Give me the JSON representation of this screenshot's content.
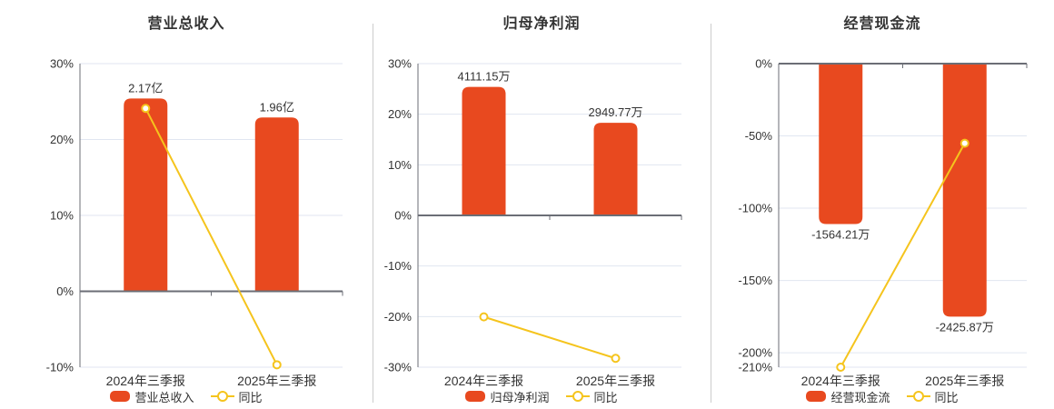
{
  "colors": {
    "bar": "#e8491f",
    "line": "#f5c41d",
    "axis": "#6b6e76",
    "grid": "#e0e6f1",
    "text": "#333333",
    "divider": "#cccccc",
    "background": "#ffffff"
  },
  "chart_data": [
    {
      "type": "bar",
      "title": "营业总收入",
      "categories": [
        "2024年三季报",
        "2025年三季报"
      ],
      "ylim": [
        -10,
        30
      ],
      "grid": true,
      "legend_position": "bottom",
      "y_ticks": [
        {
          "value": 30,
          "label": "30%"
        },
        {
          "value": 20,
          "label": "20%"
        },
        {
          "value": 10,
          "label": "10%"
        },
        {
          "value": 0,
          "label": "0%"
        },
        {
          "value": -10,
          "label": "-10%"
        }
      ],
      "series": [
        {
          "type": "bar",
          "name": "营业总收入",
          "data_labels": [
            "2.17亿",
            "1.96亿"
          ],
          "values_pct": [
            25.4,
            22.9
          ],
          "label_placement": "above"
        },
        {
          "type": "line",
          "name": "同比",
          "values_pct": [
            24.1,
            -9.68
          ]
        }
      ]
    },
    {
      "type": "bar",
      "title": "归母净利润",
      "categories": [
        "2024年三季报",
        "2025年三季报"
      ],
      "ylim": [
        -30,
        30
      ],
      "grid": true,
      "legend_position": "bottom",
      "y_ticks": [
        {
          "value": 30,
          "label": "30%"
        },
        {
          "value": 20,
          "label": "20%"
        },
        {
          "value": 10,
          "label": "10%"
        },
        {
          "value": 0,
          "label": "0%"
        },
        {
          "value": -10,
          "label": "-10%"
        },
        {
          "value": -20,
          "label": "-20%"
        },
        {
          "value": -30,
          "label": "-30%"
        }
      ],
      "series": [
        {
          "type": "bar",
          "name": "归母净利润",
          "data_labels": [
            "4111.15万",
            "2949.77万"
          ],
          "values_pct": [
            25.4,
            18.3
          ],
          "label_placement": "above"
        },
        {
          "type": "line",
          "name": "同比",
          "values_pct": [
            -20.05,
            -28.25
          ]
        }
      ]
    },
    {
      "type": "bar",
      "title": "经营现金流",
      "categories": [
        "2024年三季报",
        "2025年三季报"
      ],
      "ylim": [
        -210,
        0
      ],
      "grid": true,
      "legend_position": "bottom",
      "y_ticks": [
        {
          "value": 0,
          "label": "0%"
        },
        {
          "value": -50,
          "label": "-50%"
        },
        {
          "value": -100,
          "label": "-100%"
        },
        {
          "value": -150,
          "label": "-150%"
        },
        {
          "value": -200,
          "label": "-200%"
        },
        {
          "value": -210,
          "label": "-210%"
        }
      ],
      "series": [
        {
          "type": "bar",
          "name": "经营现金流",
          "data_labels": [
            "-1564.21万",
            "-2425.87万"
          ],
          "values_pct": [
            -111,
            -175
          ],
          "label_placement": "below"
        },
        {
          "type": "line",
          "name": "同比",
          "values_pct": [
            -210,
            -55.09
          ]
        }
      ]
    }
  ]
}
